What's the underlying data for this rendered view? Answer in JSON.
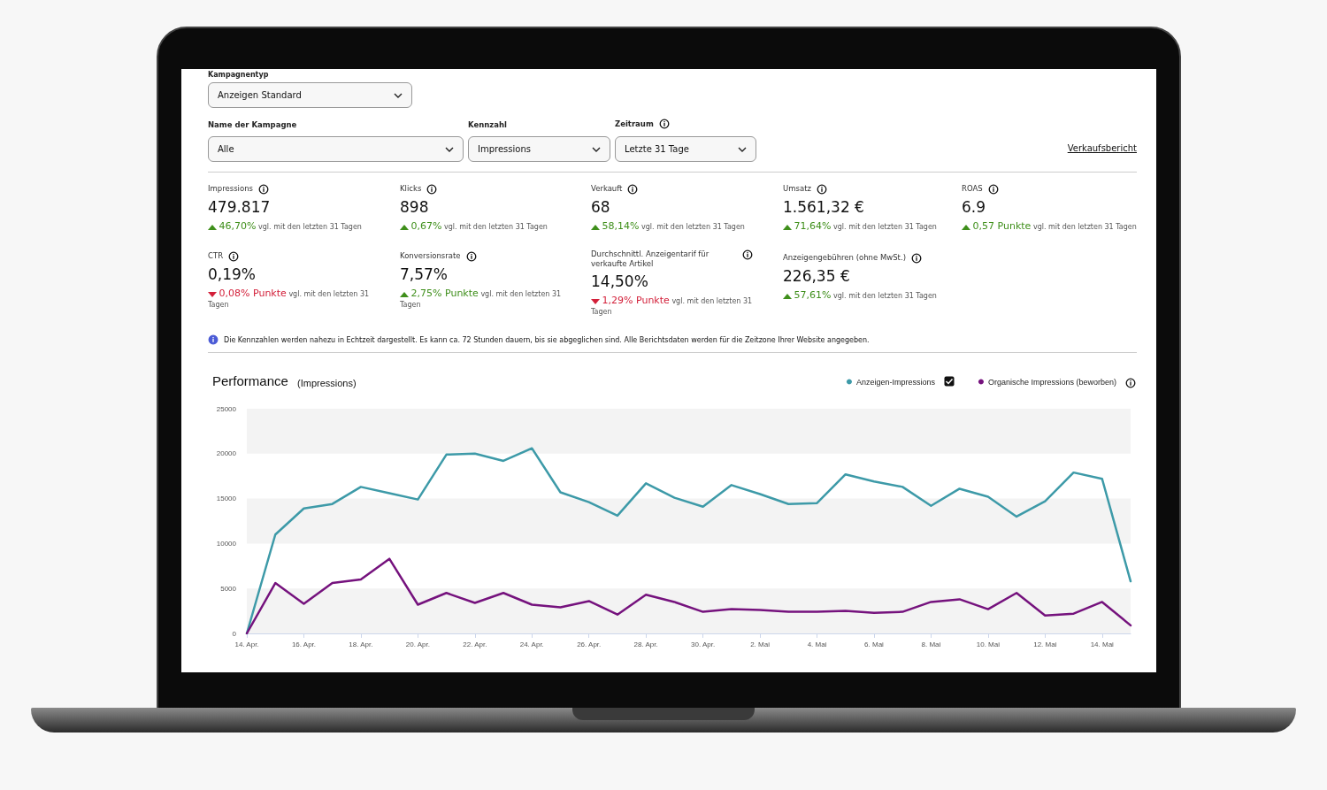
{
  "chart_data": [
    {
      "type": "other",
      "annotations": [
        "Kampagnentyp",
        "Anzeigen Standard",
        "Name der Kampagne",
        "Alle",
        "Kennzahl",
        "Impressions",
        "Zeitraum",
        "Letzte 31 Tage",
        "Verkaufsbericht",
        "Impressions",
        "479.817",
        "46,70%",
        "vgl. mit den letzten 31 Tagen",
        "Klicks",
        "898",
        "0,67%",
        "vgl. mit den letzten 31 Tagen",
        "Verkauft",
        "68",
        "58,14%",
        "vgl. mit den letzten 31 Tagen",
        "Umsatz",
        "1.561,32 €",
        "71,64%",
        "vgl. mit den letzten 31 Tagen",
        "ROAS",
        "6.9",
        "0,57 Punkte",
        "vgl. mit den letzten 31 Tagen",
        "CTR",
        "0,19%",
        "0,08% Punkte",
        "vgl. mit den letzten 31 Tagen",
        "Konversionsrate",
        "7,57%",
        "2,75% Punkte",
        "vgl. mit den letzten 31 Tagen",
        "Durchschnittl. Anzeigentarif für verkaufte Artikel",
        "14,50%",
        "1,29% Punkte",
        "vgl. mit den letzten 31 Tagen",
        "Anzeigengebühren (ohne MwSt.)",
        "226,35 €",
        "57,61%",
        "vgl. mit den letzten 31 Tagen",
        "Die Kennzahlen werden nahezu in Echtzeit dargestellt. Es kann ca. 72 Stunden dauern, bis sie abgeglichen sind. Alle Berichtsdaten werden für die Zeitzone Ihrer Website angegeben."
      ]
    },
    {
      "type": "line",
      "title": "Performance",
      "subtitle": "(Impressions)",
      "categories": [
        "14. Apr.",
        null,
        "16. Apr.",
        null,
        "18. Apr.",
        null,
        "20. Apr.",
        null,
        "22. Apr.",
        null,
        "24. Apr.",
        null,
        "26. Apr.",
        null,
        "28. Apr.",
        null,
        "30. Apr.",
        null,
        "2. Mai",
        null,
        "4. Mai",
        null,
        "6. Mai",
        null,
        "8. Mai",
        null,
        "10. Mai",
        null,
        "12. Mai",
        null,
        "14. Mai",
        null
      ],
      "series": [
        {
          "name": "Anzeigen-Impressions",
          "color": "#3d9aa8",
          "values": [
            0,
            11000,
            13900,
            14400,
            16300,
            15600,
            14900,
            19900,
            20000,
            19200,
            20600,
            15700,
            14600,
            13100,
            16700,
            15100,
            14100,
            16500,
            15500,
            14400,
            14500,
            17700,
            16900,
            16300,
            14200,
            16100,
            15200,
            13000,
            14700,
            17900,
            17200,
            5800
          ]
        },
        {
          "name": "Organische Impressions (beworben)",
          "color": "#75127d",
          "values": [
            0,
            5600,
            3300,
            5600,
            6000,
            8300,
            3200,
            4500,
            3400,
            4500,
            3200,
            2900,
            3600,
            2100,
            4300,
            3500,
            2400,
            2700,
            2600,
            2400,
            2400,
            2500,
            2300,
            2400,
            3500,
            3800,
            2700,
            4500,
            2000,
            2200,
            3500,
            900
          ]
        }
      ],
      "ylim": [
        0,
        25000
      ],
      "yticks": [
        0,
        5000,
        10000,
        15000,
        20000,
        25000
      ],
      "bands": [
        {
          "axis": "y",
          "from": 0,
          "to": 5000,
          "color": "#f3f3f3"
        },
        {
          "axis": "y",
          "from": 10000,
          "to": 15000,
          "color": "#f3f3f3"
        },
        {
          "axis": "y",
          "from": 20000,
          "to": 25000,
          "color": "#f3f3f3"
        }
      ],
      "legend": "top right"
    }
  ]
}
